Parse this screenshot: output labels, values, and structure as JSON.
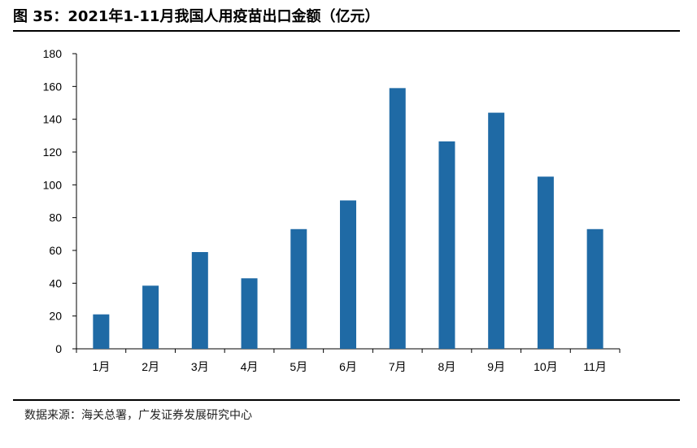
{
  "title": "图 35：2021年1-11月我国人用疫苗出口金额（亿元）",
  "source": "数据来源：海关总署，广发证券发展研究中心",
  "chart_data": {
    "type": "bar",
    "title": "2021年1-11月我国人用疫苗出口金额（亿元）",
    "xlabel": "",
    "ylabel": "",
    "categories": [
      "1月",
      "2月",
      "3月",
      "4月",
      "5月",
      "6月",
      "7月",
      "8月",
      "9月",
      "10月",
      "11月"
    ],
    "values": [
      21,
      38.5,
      59,
      43,
      73,
      90.5,
      159,
      126.5,
      144,
      105,
      73
    ],
    "ylim": [
      0,
      180
    ],
    "yticks": [
      0,
      20,
      40,
      60,
      80,
      100,
      120,
      140,
      160,
      180
    ],
    "grid": false,
    "legend": "none",
    "bar_color": "#1F6AA5"
  }
}
